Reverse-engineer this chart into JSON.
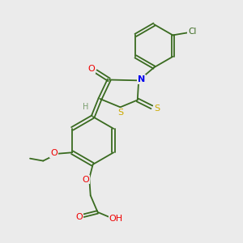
{
  "background_color": "#ebebeb",
  "atom_colors": {
    "C": "#3a6b20",
    "H": "#7a9e6e",
    "N": "#0000ee",
    "O": "#ee0000",
    "S": "#ccaa00",
    "Cl": "#3a6b20"
  },
  "bond_color": "#3a6b20",
  "figsize": [
    3.0,
    3.0
  ],
  "dpi": 100,
  "xlim": [
    0,
    10
  ],
  "ylim": [
    0,
    10
  ]
}
